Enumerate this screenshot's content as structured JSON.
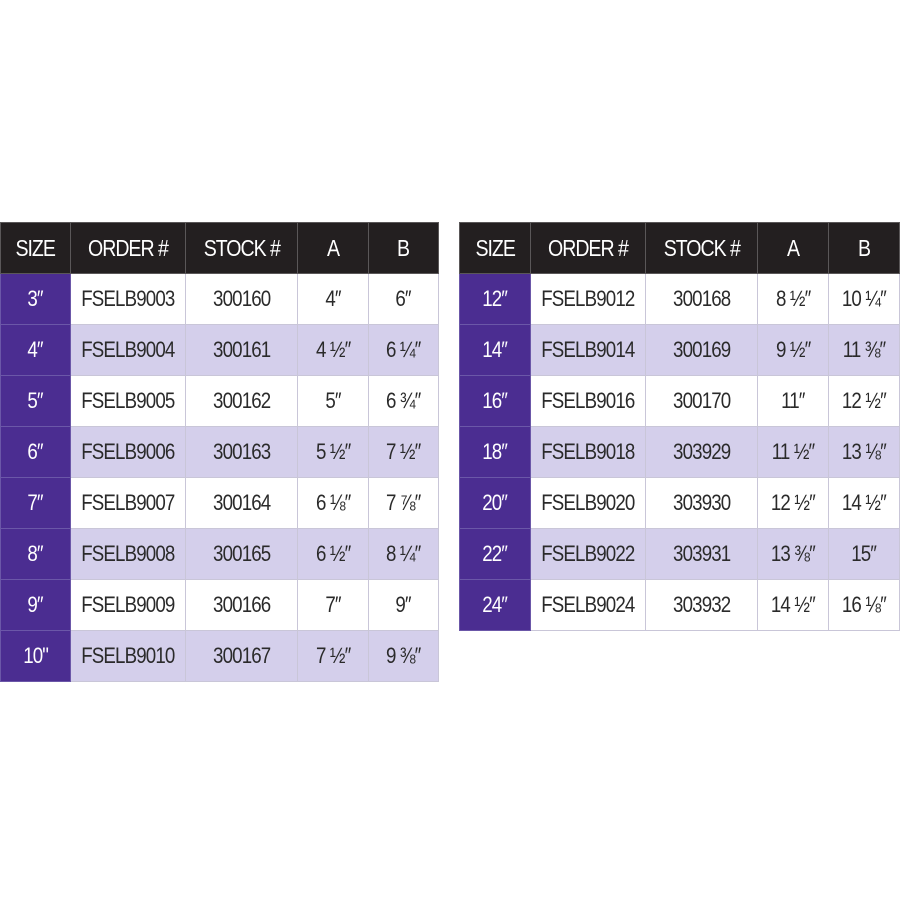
{
  "headers": [
    "SIZE",
    "ORDER #",
    "STOCK #",
    "A",
    "B"
  ],
  "colors": {
    "header_bg": "#231f20",
    "size_bg": "#4b2d91",
    "alt_row": "#d4cfeb"
  },
  "tables": [
    {
      "rows": [
        [
          "3″",
          "FSELB9003",
          "300160",
          "4″",
          "6″"
        ],
        [
          "4″",
          "FSELB9004",
          "300161",
          "4 ½″",
          "6 ¼″"
        ],
        [
          "5″",
          "FSELB9005",
          "300162",
          "5″",
          "6 ¾″"
        ],
        [
          "6″",
          "FSELB9006",
          "300163",
          "5 ½″",
          "7 ½″"
        ],
        [
          "7″",
          "FSELB9007",
          "300164",
          "6 ⅛″",
          "7 ⅞″"
        ],
        [
          "8″",
          "FSELB9008",
          "300165",
          "6 ½″",
          "8 ¼″"
        ],
        [
          "9″",
          "FSELB9009",
          "300166",
          "7″",
          "9″"
        ],
        [
          "10\"",
          "FSELB9010",
          "300167",
          "7 ½″",
          "9 ⅜″"
        ]
      ]
    },
    {
      "rows": [
        [
          "12″",
          "FSELB9012",
          "300168",
          "8 ½″",
          "10 ¼″"
        ],
        [
          "14″",
          "FSELB9014",
          "300169",
          "9 ½″",
          "11 ⅜″"
        ],
        [
          "16″",
          "FSELB9016",
          "300170",
          "11″",
          "12 ½″"
        ],
        [
          "18″",
          "FSELB9018",
          "303929",
          "11 ½″",
          "13 ⅛″"
        ],
        [
          "20″",
          "FSELB9020",
          "303930",
          "12 ½″",
          "14 ½″"
        ],
        [
          "22″",
          "FSELB9022",
          "303931",
          "13 ⅜″",
          "15″"
        ],
        [
          "24″",
          "FSELB9024",
          "303932",
          "14 ½″",
          "16 ⅛″"
        ]
      ]
    }
  ]
}
